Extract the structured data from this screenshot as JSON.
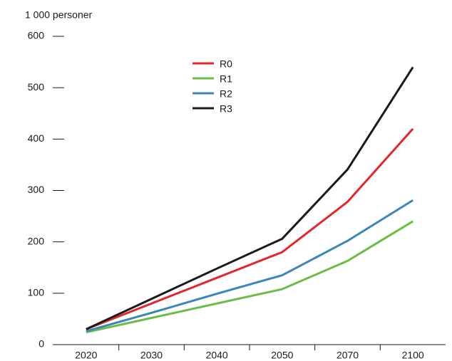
{
  "chart_data": {
    "type": "line",
    "y_label": "1 000 personer",
    "categories": [
      "2020",
      "2030",
      "2040",
      "2050",
      "2070",
      "2100"
    ],
    "series": [
      {
        "name": "R0",
        "color": "#e3262a",
        "values": [
          30,
          80,
          130,
          180,
          278,
          420
        ]
      },
      {
        "name": "R1",
        "color": "#6cbd45",
        "values": [
          24,
          52,
          80,
          108,
          163,
          240
        ]
      },
      {
        "name": "R2",
        "color": "#3a87b8",
        "values": [
          26,
          62,
          99,
          135,
          202,
          281
        ]
      },
      {
        "name": "R3",
        "color": "#1a1a1a",
        "values": [
          30,
          89,
          148,
          206,
          341,
          540
        ]
      }
    ],
    "ylim": [
      0,
      600
    ],
    "yticks": [
      0,
      100,
      200,
      300,
      400,
      500,
      600
    ],
    "legend": "top"
  }
}
